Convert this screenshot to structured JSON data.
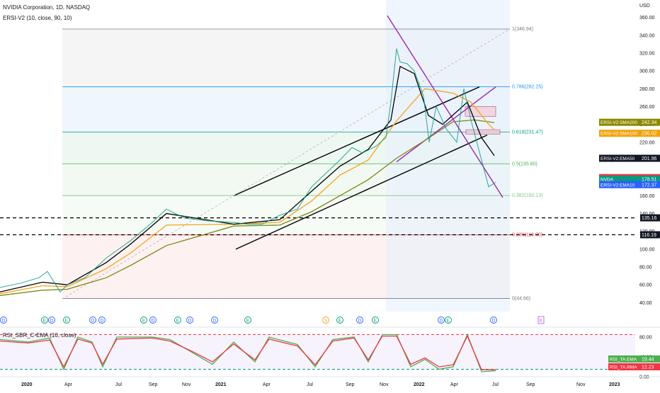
{
  "header": {
    "symbol_line": "NVIDIA Corporation, 1D, NASDAQ",
    "indicator_line": "ERSI-V2 (10, close, 90, 10)",
    "rsi_line": "RSI_SBR_C-EMA (10, close)"
  },
  "chart_data": [
    {
      "type": "line",
      "title": "NVIDIA Corporation, 1D, NASDAQ",
      "currency": "USD",
      "ylim": [
        30,
        370
      ],
      "y_ticks": [
        "360.00",
        "340.00",
        "320.00",
        "300.00",
        "280.00",
        "260.00",
        "240.00",
        "220.00",
        "200.00",
        "180.00",
        "160.00",
        "140.00",
        "120.00",
        "100.00",
        "80.00",
        "60.00",
        "40.00"
      ],
      "x_tick_labels": [
        "2020",
        "Apr",
        "Jul",
        "Sep",
        "Nov",
        "2021",
        "Apr",
        "Jul",
        "Sep",
        "Nov",
        "2022",
        "Apr",
        "Jul",
        "Sep",
        "Nov",
        "2023"
      ],
      "series": [
        {
          "name": "NVDA",
          "color": "#089981",
          "values": [
            [
              0,
              57
            ],
            [
              30,
              62
            ],
            [
              55,
              68
            ],
            [
              67,
              75
            ],
            [
              85,
              52
            ],
            [
              95,
              60
            ],
            [
              120,
              68
            ],
            [
              150,
              90
            ],
            [
              185,
              110
            ],
            [
              215,
              130
            ],
            [
              235,
              145
            ],
            [
              260,
              135
            ],
            [
              290,
              132
            ],
            [
              330,
              130
            ],
            [
              350,
              128
            ],
            [
              370,
              128
            ],
            [
              395,
              138
            ],
            [
              420,
              145
            ],
            [
              440,
              170
            ],
            [
              460,
              185
            ],
            [
              480,
              200
            ],
            [
              497,
              214
            ],
            [
              512,
              208
            ],
            [
              530,
              215
            ],
            [
              545,
              225
            ],
            [
              552,
              265
            ],
            [
              560,
              325
            ],
            [
              565,
              310
            ],
            [
              575,
              308
            ],
            [
              585,
              300
            ],
            [
              598,
              272
            ],
            [
              606,
              220
            ],
            [
              616,
              260
            ],
            [
              630,
              235
            ],
            [
              645,
              220
            ],
            [
              655,
              280
            ],
            [
              665,
              245
            ],
            [
              680,
              200
            ],
            [
              690,
              170
            ],
            [
              700,
              175
            ]
          ]
        },
        {
          "name": "EMA10",
          "color": "#000000",
          "values": [
            [
              0,
              52
            ],
            [
              60,
              63
            ],
            [
              95,
              60
            ],
            [
              150,
              85
            ],
            [
              185,
              106
            ],
            [
              235,
              140
            ],
            [
              330,
              128
            ],
            [
              395,
              133
            ],
            [
              440,
              165
            ],
            [
              480,
              193
            ],
            [
              520,
              212
            ],
            [
              552,
              245
            ],
            [
              565,
              305
            ],
            [
              585,
              297
            ],
            [
              605,
              250
            ],
            [
              625,
              240
            ],
            [
              660,
              265
            ],
            [
              680,
              225
            ],
            [
              698,
              205
            ]
          ]
        },
        {
          "name": "EMA21",
          "color": "#f7a21b",
          "values": [
            [
              0,
              50
            ],
            [
              60,
              59
            ],
            [
              95,
              58
            ],
            [
              150,
              78
            ],
            [
              185,
              96
            ],
            [
              235,
              127
            ],
            [
              330,
              128
            ],
            [
              395,
              130
            ],
            [
              440,
              154
            ],
            [
              480,
              183
            ],
            [
              520,
              200
            ],
            [
              560,
              244
            ],
            [
              600,
              280
            ],
            [
              640,
              275
            ],
            [
              665,
              265
            ],
            [
              690,
              240
            ],
            [
              698,
              234
            ]
          ]
        },
        {
          "name": "EMA50",
          "color": "#7a8a12",
          "values": [
            [
              0,
              48
            ],
            [
              60,
              54
            ],
            [
              95,
              55
            ],
            [
              150,
              68
            ],
            [
              185,
              82
            ],
            [
              235,
              104
            ],
            [
              330,
              126
            ],
            [
              395,
              127
            ],
            [
              440,
              142
            ],
            [
              480,
              160
            ],
            [
              520,
              178
            ],
            [
              560,
              202
            ],
            [
              600,
              222
            ],
            [
              640,
              243
            ],
            [
              670,
              245
            ],
            [
              698,
              242
            ]
          ]
        }
      ],
      "price_labels": [
        {
          "label": "ERSI-V2:SMA200",
          "value": "242.34",
          "color": "#8a8a00",
          "y": 242.34
        },
        {
          "label": "ERSI-V2:SMA100",
          "value": "230.02",
          "color": "#f0a30a",
          "y": 230.02
        },
        {
          "label": "ERSI-V2:EMA50",
          "value": "201.96",
          "color": "#131722",
          "y": 201.96
        },
        {
          "label": "ERSI-V2:EMA21",
          "value": "180.32",
          "color": "#f23645",
          "y": 180.32
        },
        {
          "label": "NVDA",
          "value": "178.51",
          "color": "#089981",
          "y": 178.51
        },
        {
          "label": "ERSI-V2:EMA10",
          "value": "172.37",
          "color": "#2962ff",
          "y": 172.37
        },
        {
          "label": "",
          "value": "135.16",
          "color": "#131722",
          "y": 135.16
        },
        {
          "label": "",
          "value": "116.19",
          "color": "#131722",
          "y": 116.19
        }
      ],
      "fib_levels": [
        {
          "label": "1(346.94)",
          "value": 346.94,
          "color": "#787b86"
        },
        {
          "label": "0.786(282.25)",
          "value": 282.25,
          "color": "#2196f3"
        },
        {
          "label": "0.618(231.47)",
          "value": 231.47,
          "color": "#089981"
        },
        {
          "label": "0.5(195.80)",
          "value": 195.8,
          "color": "#4caf50"
        },
        {
          "label": "0.382(160.13)",
          "value": 160.13,
          "color": "#81c784"
        },
        {
          "label": "0.236(116.00)",
          "value": 116.0,
          "color": "#f23645"
        },
        {
          "label": "0(44.66)",
          "value": 44.66,
          "color": "#787b86"
        }
      ],
      "horizontal_lines": [
        135.16,
        116.19
      ],
      "trendlines": [
        {
          "color": "#000000",
          "from": [
            330,
            160
          ],
          "to": [
            677,
            282
          ]
        },
        {
          "color": "#000000",
          "from": [
            333,
            100
          ],
          "to": [
            688,
            228
          ]
        },
        {
          "color": "#9c27b0",
          "from": [
            547,
            362
          ],
          "to": [
            710,
            158
          ]
        },
        {
          "color": "#9c27b0",
          "from": [
            560,
            198
          ],
          "to": [
            700,
            282
          ]
        },
        {
          "color": "#b0b0b0",
          "from": [
            88,
            44
          ],
          "to": [
            720,
            347
          ]
        }
      ],
      "events": [
        "D",
        "E",
        "D",
        "E",
        "D",
        "D",
        "E",
        "D",
        "E",
        "D",
        "D",
        "E",
        "S",
        "E",
        "D",
        "E",
        "D",
        "E",
        "D",
        "E"
      ],
      "event_x": [
        5,
        63,
        73,
        94,
        131,
        144,
        203,
        216,
        251,
        268,
        303,
        350,
        460,
        480,
        508,
        530,
        623,
        633,
        697,
        764
      ]
    },
    {
      "type": "line",
      "title": "RSI_SBR_C-EMA (10, close)",
      "ylim": [
        0,
        100
      ],
      "y_ticks": [
        "80.00",
        "40.00",
        "0.00"
      ],
      "upper_band": 85,
      "lower_band": 15,
      "series": [
        {
          "name": "RSI_TA.EMA",
          "value": "19.44",
          "color": "#4caf50",
          "values": [
            [
              0,
              75
            ],
            [
              40,
              70
            ],
            [
              70,
              78
            ],
            [
              90,
              15
            ],
            [
              110,
              80
            ],
            [
              130,
              70
            ],
            [
              145,
              20
            ],
            [
              165,
              80
            ],
            [
              215,
              80
            ],
            [
              240,
              75
            ],
            [
              270,
              50
            ],
            [
              300,
              25
            ],
            [
              330,
              70
            ],
            [
              360,
              30
            ],
            [
              380,
              80
            ],
            [
              420,
              65
            ],
            [
              445,
              20
            ],
            [
              470,
              75
            ],
            [
              500,
              80
            ],
            [
              520,
              30
            ],
            [
              540,
              85
            ],
            [
              560,
              85
            ],
            [
              580,
              20
            ],
            [
              600,
              35
            ],
            [
              620,
              15
            ],
            [
              640,
              20
            ],
            [
              660,
              85
            ],
            [
              680,
              10
            ],
            [
              700,
              12
            ]
          ]
        },
        {
          "name": "RSI_TA.RMA",
          "value": "12.23",
          "color": "#f23645",
          "values": [
            [
              0,
              72
            ],
            [
              40,
              68
            ],
            [
              70,
              74
            ],
            [
              90,
              20
            ],
            [
              110,
              76
            ],
            [
              130,
              68
            ],
            [
              145,
              25
            ],
            [
              165,
              76
            ],
            [
              215,
              78
            ],
            [
              240,
              72
            ],
            [
              270,
              52
            ],
            [
              300,
              30
            ],
            [
              330,
              66
            ],
            [
              360,
              34
            ],
            [
              380,
              76
            ],
            [
              420,
              62
            ],
            [
              445,
              24
            ],
            [
              470,
              72
            ],
            [
              500,
              78
            ],
            [
              520,
              34
            ],
            [
              540,
              82
            ],
            [
              560,
              82
            ],
            [
              580,
              25
            ],
            [
              600,
              38
            ],
            [
              620,
              20
            ],
            [
              640,
              24
            ],
            [
              660,
              82
            ],
            [
              680,
              14
            ],
            [
              700,
              14
            ]
          ]
        }
      ]
    }
  ]
}
